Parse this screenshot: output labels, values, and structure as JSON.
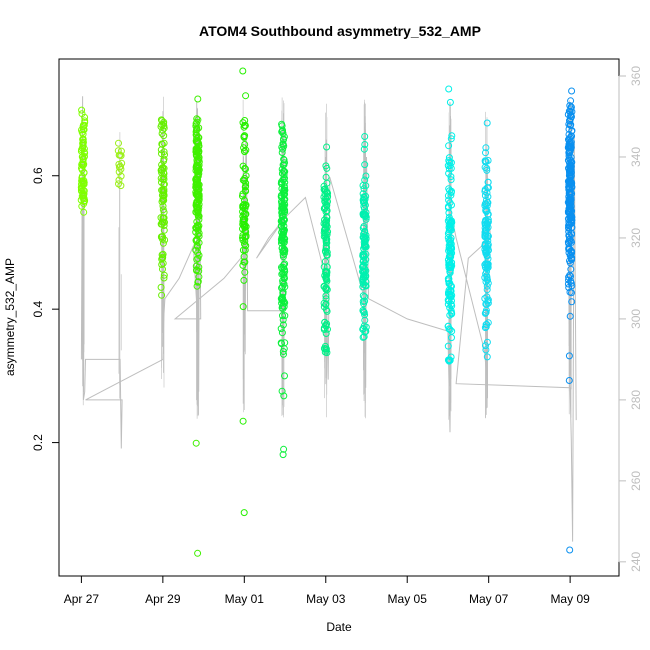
{
  "chart_data": {
    "type": "scatter",
    "title": "ATOM4 Southbound asymmetry_532_AMP",
    "xlabel": "Date",
    "ylabel": "asymmetry_532_AMP",
    "x_unit": "days since Apr 27",
    "xlim": [
      -0.55,
      13.2
    ],
    "ylim": [
      0.0,
      0.775
    ],
    "y2lim": [
      236.5,
      364.2
    ],
    "x_ticks": [
      {
        "value": 0,
        "label": "Apr 27"
      },
      {
        "value": 2,
        "label": "Apr 29"
      },
      {
        "value": 4,
        "label": "May 01"
      },
      {
        "value": 6,
        "label": "May 03"
      },
      {
        "value": 8,
        "label": "May 05"
      },
      {
        "value": 10,
        "label": "May 07"
      },
      {
        "value": 12,
        "label": "May 09"
      }
    ],
    "y_ticks": [
      {
        "value": 0.2,
        "label": "0.2"
      },
      {
        "value": 0.4,
        "label": "0.4"
      },
      {
        "value": 0.6,
        "label": "0.6"
      }
    ],
    "y2_ticks": [
      {
        "value": 240,
        "label": "240"
      },
      {
        "value": 260,
        "label": "260"
      },
      {
        "value": 280,
        "label": "280"
      },
      {
        "value": 300,
        "label": "300"
      },
      {
        "value": 320,
        "label": "320"
      },
      {
        "value": 340,
        "label": "340"
      },
      {
        "value": 360,
        "label": "360"
      }
    ],
    "clusters": [
      {
        "x": 0.04,
        "n": 75,
        "center": 0.61,
        "spread": 0.045,
        "min": 0.49,
        "max": 0.7,
        "color": "#7fff00",
        "outliers": []
      },
      {
        "x": 0.95,
        "n": 16,
        "center": 0.61,
        "spread": 0.022,
        "min": 0.575,
        "max": 0.655,
        "color": "#9cf01b",
        "outliers": []
      },
      {
        "x": 2.0,
        "n": 85,
        "center": 0.57,
        "spread": 0.075,
        "min": 0.38,
        "max": 0.69,
        "color": "#66f000",
        "outliers": []
      },
      {
        "x": 2.85,
        "n": 170,
        "center": 0.58,
        "spread": 0.055,
        "min": 0.4,
        "max": 0.69,
        "color": "#3ff000",
        "outliers": [
          0.715,
          0.199,
          0.034
        ]
      },
      {
        "x": 4.0,
        "n": 75,
        "center": 0.55,
        "spread": 0.075,
        "min": 0.385,
        "max": 0.69,
        "color": "#26f000",
        "outliers": [
          0.757,
          0.72,
          0.232,
          0.095
        ]
      },
      {
        "x": 4.95,
        "n": 170,
        "center": 0.51,
        "spread": 0.085,
        "min": 0.33,
        "max": 0.68,
        "color": "#0cf03c",
        "outliers": [
          0.3,
          0.277,
          0.27,
          0.19,
          0.182
        ]
      },
      {
        "x": 6.0,
        "n": 110,
        "center": 0.48,
        "spread": 0.075,
        "min": 0.33,
        "max": 0.69,
        "color": "#00f088",
        "outliers": []
      },
      {
        "x": 6.95,
        "n": 120,
        "center": 0.48,
        "spread": 0.075,
        "min": 0.355,
        "max": 0.705,
        "color": "#00f0b0",
        "outliers": []
      },
      {
        "x": 9.05,
        "n": 130,
        "center": 0.49,
        "spread": 0.075,
        "min": 0.32,
        "max": 0.66,
        "color": "#00f0e8",
        "outliers": [
          0.71,
          0.73
        ]
      },
      {
        "x": 9.95,
        "n": 120,
        "center": 0.5,
        "spread": 0.075,
        "min": 0.325,
        "max": 0.72,
        "color": "#12dcf0",
        "outliers": []
      },
      {
        "x": 12.0,
        "n": 200,
        "center": 0.58,
        "spread": 0.065,
        "min": 0.377,
        "max": 0.715,
        "color": "#0a90f0",
        "outliers": [
          0.727,
          0.33,
          0.293,
          0.039
        ]
      }
    ],
    "azimuth_series": {
      "name": "heading",
      "color": "#bebebe",
      "points": [
        [
          0.0,
          290
        ],
        [
          0.03,
          355
        ],
        [
          0.05,
          280
        ],
        [
          0.08,
          282
        ],
        [
          0.1,
          290
        ],
        [
          0.95,
          290
        ],
        [
          0.98,
          268
        ],
        [
          1.0,
          280
        ],
        [
          0.1,
          280
        ],
        [
          2.0,
          290
        ],
        [
          2.02,
          300
        ],
        [
          2.05,
          305
        ],
        [
          2.4,
          310
        ],
        [
          2.75,
          318
        ],
        [
          2.85,
          300
        ],
        [
          2.88,
          282
        ],
        [
          2.9,
          345
        ],
        [
          2.93,
          300
        ],
        [
          2.3,
          300
        ],
        [
          3.5,
          310
        ],
        [
          4.0,
          316
        ],
        [
          4.02,
          302
        ],
        [
          4.05,
          345
        ],
        [
          4.08,
          302
        ],
        [
          4.9,
          302
        ],
        [
          4.93,
          300
        ],
        [
          4.96,
          340
        ],
        [
          5.0,
          325
        ],
        [
          4.3,
          315
        ],
        [
          4.6,
          320
        ],
        [
          5.0,
          325
        ],
        [
          5.5,
          330
        ],
        [
          6.0,
          310
        ],
        [
          6.03,
          300
        ],
        [
          6.06,
          285
        ],
        [
          6.1,
          335
        ],
        [
          6.95,
          305
        ],
        [
          6.98,
          283
        ],
        [
          7.0,
          340
        ],
        [
          7.05,
          305
        ],
        [
          8.0,
          300
        ],
        [
          9.0,
          297
        ],
        [
          9.05,
          272
        ],
        [
          9.1,
          325
        ],
        [
          9.2,
          320
        ],
        [
          9.9,
          292
        ],
        [
          9.95,
          286
        ],
        [
          10.0,
          325
        ],
        [
          10.05,
          320
        ],
        [
          9.5,
          315
        ],
        [
          9.2,
          284
        ],
        [
          12.0,
          283
        ],
        [
          12.03,
          270
        ],
        [
          12.06,
          245
        ],
        [
          12.1,
          345
        ],
        [
          12.15,
          275
        ]
      ]
    }
  }
}
